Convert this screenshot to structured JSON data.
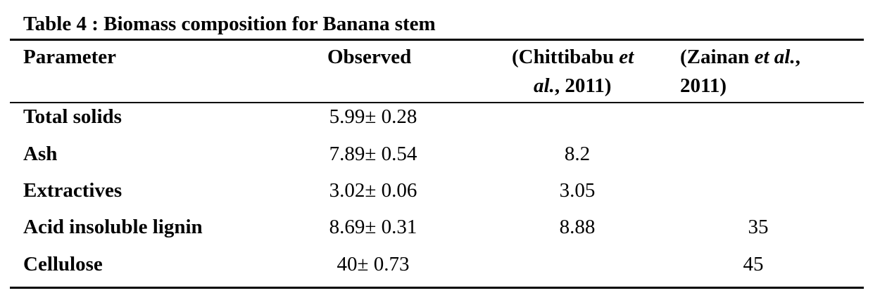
{
  "table": {
    "title": "Table 4 : Biomass composition for Banana stem",
    "headers": {
      "parameter": "Parameter",
      "observed": "Observed",
      "chittibabu_line1_a": "(Chittibabu ",
      "chittibabu_line1_b": "et",
      "chittibabu_line2_a": "al.",
      "chittibabu_line2_b": ", 2011)",
      "zainan_line1_a": "(Zainan ",
      "zainan_line1_b": "et al.",
      "zainan_line1_c": ",",
      "zainan_line2": "2011)"
    },
    "rows": [
      {
        "parameter": "Total solids",
        "observed": "5.99± 0.28",
        "chittibabu": "",
        "zainan": ""
      },
      {
        "parameter": "Ash",
        "observed": "7.89± 0.54",
        "chittibabu": "8.2",
        "zainan": ""
      },
      {
        "parameter": "Extractives",
        "observed": "3.02± 0.06",
        "chittibabu": "3.05",
        "zainan": ""
      },
      {
        "parameter": "Acid insoluble lignin",
        "observed": "8.69± 0.31",
        "chittibabu": "8.88",
        "zainan": "35"
      },
      {
        "parameter": "Cellulose",
        "observed": "40± 0.73",
        "chittibabu": "",
        "zainan": "45"
      }
    ]
  }
}
